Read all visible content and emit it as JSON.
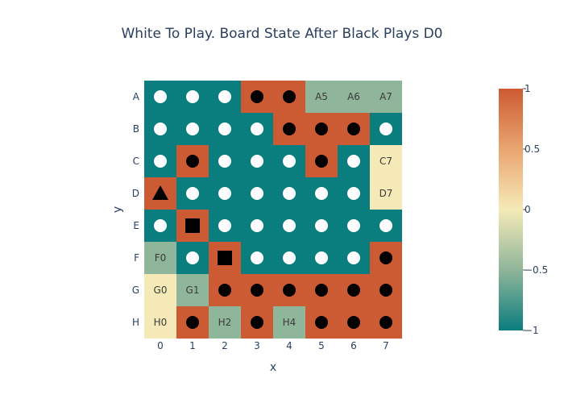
{
  "title": "White To Play. Board State After Black Plays D0",
  "x_title": "x",
  "y_title": "y",
  "x_ticks": [
    "0",
    "1",
    "2",
    "3",
    "4",
    "5",
    "6",
    "7"
  ],
  "y_ticks": [
    "A",
    "B",
    "C",
    "D",
    "E",
    "F",
    "G",
    "H"
  ],
  "colorbar": {
    "ticks": [
      {
        "value": 1,
        "label": "1"
      },
      {
        "value": 0.5,
        "label": "0.5"
      },
      {
        "value": 0,
        "label": "0"
      },
      {
        "value": -0.5,
        "label": "−0.5"
      },
      {
        "value": -1,
        "label": "−1"
      }
    ],
    "range": [
      -1,
      1
    ]
  },
  "colors": {
    "neg1": "#0a7d7e",
    "neg05": "#8fb59a",
    "zero": "#f5eab7",
    "pos05": "#e9a570",
    "pos1": "#cc5a32",
    "empty_mid": "#a9c4a1"
  },
  "board": [
    [
      -1,
      -1,
      -1,
      1,
      1,
      -0.5,
      -0.5,
      -0.5
    ],
    [
      -1,
      -1,
      -1,
      -1,
      1,
      1,
      1,
      -1
    ],
    [
      -1,
      1,
      -1,
      -1,
      -1,
      1,
      -1,
      0
    ],
    [
      1,
      -1,
      -1,
      -1,
      -1,
      -1,
      -1,
      0
    ],
    [
      -1,
      1,
      -1,
      -1,
      -1,
      -1,
      -1,
      -1
    ],
    [
      -0.5,
      -1,
      1,
      -1,
      -1,
      -1,
      -1,
      1
    ],
    [
      0,
      -0.5,
      1,
      1,
      1,
      1,
      1,
      1
    ],
    [
      0,
      1,
      -0.5,
      1,
      -0.5,
      1,
      1,
      1
    ]
  ],
  "pieces": [
    [
      "W",
      "W",
      "W",
      "B",
      "B",
      "",
      "",
      ""
    ],
    [
      "W",
      "W",
      "W",
      "W",
      "B",
      "B",
      "B",
      "W"
    ],
    [
      "W",
      "B",
      "W",
      "W",
      "W",
      "B",
      "W",
      ""
    ],
    [
      "T",
      "W",
      "W",
      "W",
      "W",
      "W",
      "W",
      ""
    ],
    [
      "W",
      "S",
      "W",
      "W",
      "W",
      "W",
      "W",
      "W"
    ],
    [
      "",
      "W",
      "S",
      "W",
      "W",
      "W",
      "W",
      "B"
    ],
    [
      "",
      "",
      "B",
      "B",
      "B",
      "B",
      "B",
      "B"
    ],
    [
      "",
      "B",
      "",
      "B",
      "",
      "B",
      "B",
      "B"
    ]
  ],
  "labels": [
    [
      "",
      "",
      "",
      "",
      "",
      "A5",
      "A6",
      "A7"
    ],
    [
      "",
      "",
      "",
      "",
      "",
      "",
      "",
      ""
    ],
    [
      "",
      "",
      "",
      "",
      "",
      "",
      "",
      "C7"
    ],
    [
      "",
      "",
      "",
      "",
      "",
      "",
      "",
      "D7"
    ],
    [
      "",
      "",
      "",
      "",
      "",
      "",
      "",
      ""
    ],
    [
      "F0",
      "",
      "",
      "",
      "",
      "",
      "",
      ""
    ],
    [
      "G0",
      "G1",
      "",
      "",
      "",
      "",
      "",
      ""
    ],
    [
      "H0",
      "",
      "H2",
      "",
      "H4",
      "",
      "",
      ""
    ]
  ]
}
